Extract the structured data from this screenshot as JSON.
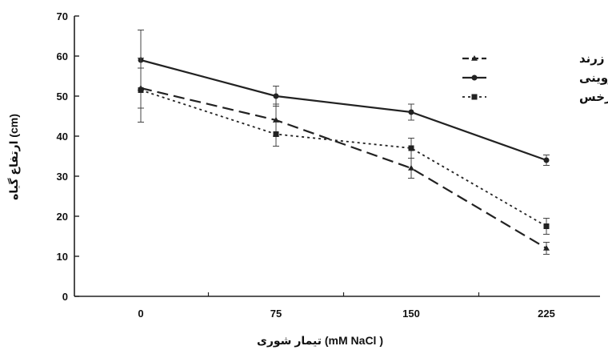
{
  "chart_data": {
    "type": "line",
    "title": "",
    "xlabel": "تیمار شوری (mM NaCl )",
    "ylabel": "ارتفاع گیاه (cm)",
    "categories": [
      "0",
      "75",
      "150",
      "225"
    ],
    "ylim": [
      0,
      70
    ],
    "yticks": [
      0,
      10,
      20,
      30,
      40,
      50,
      60,
      70
    ],
    "grid": false,
    "legend_position": "top-right",
    "series": [
      {
        "name": "بادامی زرند",
        "values": [
          52,
          44,
          32,
          12
        ],
        "errors": [
          5,
          4,
          2.5,
          1.5
        ],
        "style": "long-dash",
        "marker": "triangle",
        "color": "#222222"
      },
      {
        "name": "قزوینی",
        "values": [
          59,
          50,
          46,
          34
        ],
        "errors": [
          7.5,
          2.5,
          2,
          1.3
        ],
        "style": "solid",
        "marker": "dot",
        "color": "#222222"
      },
      {
        "name": "سرخس",
        "values": [
          51.5,
          40.5,
          37,
          17.5
        ],
        "errors": [
          8,
          3,
          2.5,
          2
        ],
        "style": "dotted",
        "marker": "square",
        "color": "#222222"
      }
    ]
  }
}
